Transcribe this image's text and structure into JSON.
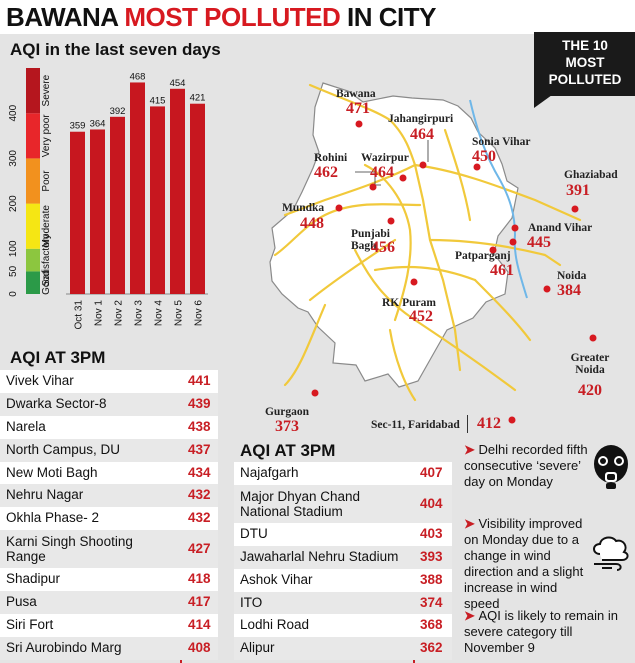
{
  "headline": {
    "part1": "BAWANA ",
    "part2": "MOST POLLUTED",
    "part3": " IN CITY"
  },
  "badge": {
    "text": "THE 10\nMOST\nPOLLUTED"
  },
  "colors": {
    "accent": "#c81e24",
    "severe": "#b5161e",
    "very_poor": "#e8262a",
    "poor": "#f2911e",
    "moderate": "#f5e614",
    "satisfactory": "#8cc63f",
    "good": "#2b9a48"
  },
  "chart_data": {
    "type": "bar",
    "title": "AQI in the last seven days",
    "categories": [
      "Oct 31",
      "Nov 1",
      "Nov 2",
      "Nov 3",
      "Nov 4",
      "Nov 5",
      "Nov 6"
    ],
    "values": [
      359,
      364,
      392,
      468,
      415,
      454,
      421
    ],
    "ylim": [
      0,
      500
    ],
    "yticks": [
      0,
      50,
      100,
      200,
      300,
      400
    ],
    "grid": false,
    "legend_scale": [
      {
        "name": "Good",
        "from": 0,
        "to": 50,
        "color": "#2b9a48"
      },
      {
        "name": "Satisfactory",
        "from": 50,
        "to": 100,
        "color": "#8cc63f"
      },
      {
        "name": "Moderate",
        "from": 100,
        "to": 200,
        "color": "#f5e614"
      },
      {
        "name": "Poor",
        "from": 200,
        "to": 300,
        "color": "#f2911e"
      },
      {
        "name": "Very poor",
        "from": 300,
        "to": 400,
        "color": "#e8262a"
      },
      {
        "name": "Severe",
        "from": 400,
        "to": 500,
        "color": "#b5161e"
      }
    ]
  },
  "map": {
    "points": [
      {
        "label": "Bawana",
        "value": "471"
      },
      {
        "label": "Jahangirpuri",
        "value": "464"
      },
      {
        "label": "Sonia Vihar",
        "value": "450"
      },
      {
        "label": "Rohini",
        "value": "462"
      },
      {
        "label": "Wazirpur",
        "value": "464"
      },
      {
        "label": "Ghaziabad",
        "value": "391"
      },
      {
        "label": "Mundka",
        "value": "448"
      },
      {
        "label": "Punjabi Bagh",
        "value": "456"
      },
      {
        "label": "Anand Vihar",
        "value": "445"
      },
      {
        "label": "Patparganj",
        "value": "461"
      },
      {
        "label": "Noida",
        "value": "384"
      },
      {
        "label": "RK Puram",
        "value": "452"
      },
      {
        "label": "Greater Noida",
        "value": "420"
      },
      {
        "label": "Gurgaon",
        "value": "373"
      },
      {
        "label": "Sec-11, Faridabad",
        "value": "412"
      }
    ]
  },
  "table1": {
    "title": "AQI AT 3PM",
    "rows": [
      {
        "name": "Vivek Vihar",
        "value": "441"
      },
      {
        "name": "Dwarka Sector-8",
        "value": "439"
      },
      {
        "name": "Narela",
        "value": "438"
      },
      {
        "name": "North Campus, DU",
        "value": "437"
      },
      {
        "name": "New Moti Bagh",
        "value": "434"
      },
      {
        "name": "Nehru Nagar",
        "value": "432"
      },
      {
        "name": "Okhla Phase- 2",
        "value": "432"
      },
      {
        "name": "Karni Singh Shooting Range",
        "value": "427"
      },
      {
        "name": "Shadipur",
        "value": "418"
      },
      {
        "name": "Pusa",
        "value": "417"
      },
      {
        "name": "Siri Fort",
        "value": "414"
      },
      {
        "name": "Sri Aurobindo Marg",
        "value": "408"
      }
    ]
  },
  "table2": {
    "title": "AQI AT 3PM",
    "rows": [
      {
        "name": "Najafgarh",
        "value": "407"
      },
      {
        "name": "Major Dhyan Chand National Stadium",
        "value": "404"
      },
      {
        "name": "DTU",
        "value": "403"
      },
      {
        "name": "Jawaharlal Nehru Stadium",
        "value": "393"
      },
      {
        "name": "Ashok Vihar",
        "value": "388"
      },
      {
        "name": "ITO",
        "value": "374"
      },
      {
        "name": "Lodhi Road",
        "value": "368"
      },
      {
        "name": "Alipur",
        "value": "362"
      }
    ]
  },
  "notes": [
    {
      "text": "Delhi recorded fifth consecutive ‘severe’ day on Monday",
      "icon": "gas-mask-icon"
    },
    {
      "text": "Visibility improved on Monday due to a change in wind direction and a slight increase in wind speed",
      "icon": "cloud-wind-icon"
    },
    {
      "text": "AQI is likely to remain in severe category till November 9"
    }
  ]
}
